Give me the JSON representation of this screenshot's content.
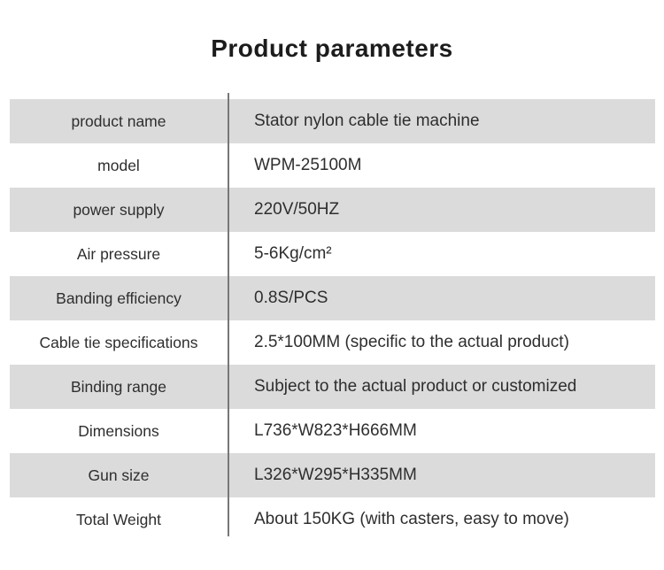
{
  "title": "Product parameters",
  "colors": {
    "row_alt_background": "#dbdbdb",
    "divider": "#777777",
    "text": "#2e2e2e"
  },
  "table": {
    "rows": [
      {
        "label": "product name",
        "value": "Stator nylon cable tie machine"
      },
      {
        "label": "model",
        "value": "WPM-25100M"
      },
      {
        "label": "power supply",
        "value": "220V/50HZ"
      },
      {
        "label": "Air pressure",
        "value": "5-6Kg/cm²"
      },
      {
        "label": "Banding efficiency",
        "value": "0.8S/PCS"
      },
      {
        "label": "Cable tie specifications",
        "value": "2.5*100MM (specific to the actual product)"
      },
      {
        "label": "Binding range",
        "value": "Subject to the actual product or customized"
      },
      {
        "label": "Dimensions",
        "value": "L736*W823*H666MM"
      },
      {
        "label": "Gun size",
        "value": "L326*W295*H335MM"
      },
      {
        "label": "Total Weight",
        "value": "About 150KG (with casters, easy to move)"
      }
    ]
  }
}
